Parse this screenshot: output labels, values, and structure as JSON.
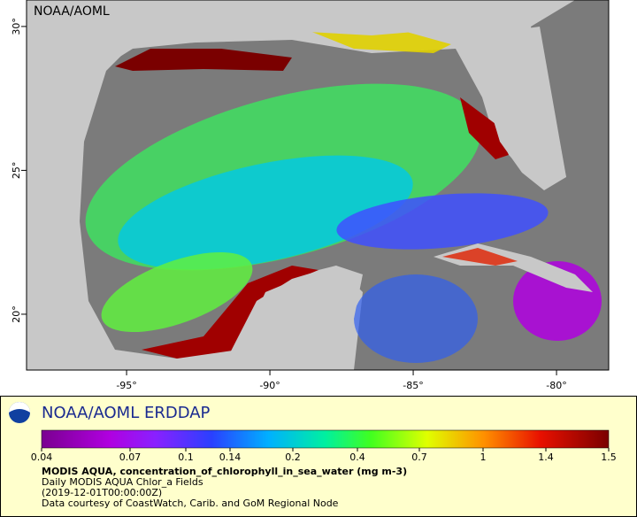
{
  "map": {
    "corner_label": "NOAA/AOML",
    "lon_range": [
      -98.49,
      -78.18
    ],
    "lat_range": [
      18.06,
      30.92
    ],
    "lon_ticks": [
      {
        "value": -95,
        "label": "-95°"
      },
      {
        "value": -90,
        "label": "-90°"
      },
      {
        "value": -85,
        "label": "-85°"
      },
      {
        "value": -80,
        "label": "-80°"
      }
    ],
    "lat_ticks": [
      {
        "value": 20,
        "label": "20°"
      },
      {
        "value": 25,
        "label": "25°"
      },
      {
        "value": 30,
        "label": "30°"
      }
    ]
  },
  "legend": {
    "brand": "NOAA/AOML ERDDAP",
    "scale_ticks": [
      0.04,
      0.07,
      0.1,
      0.14,
      0.2,
      0.4,
      0.7,
      1,
      1.4,
      1.5
    ],
    "variable": "MODIS AQUA, concentration_of_chlorophyll_in_sea_water (mg m-3)",
    "dataset": "Daily MODIS AQUA Chlor_a Fields",
    "time": "(2019-12-01T00:00:00Z)",
    "credit": "Data courtesy of CoastWatch, Carib. and GoM Regional Node"
  }
}
